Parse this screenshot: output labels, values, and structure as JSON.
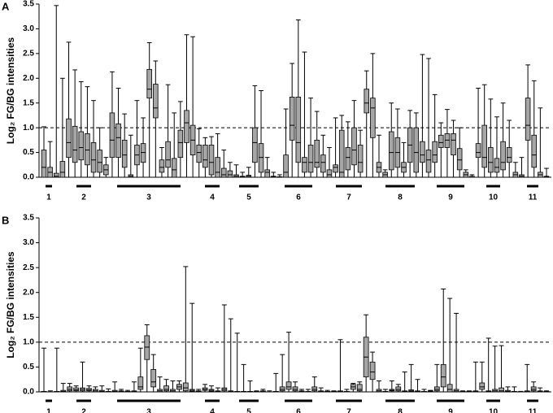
{
  "chart_data": [
    {
      "type": "box",
      "panel": "A",
      "y_label": "Log₂ FG/BG intensities",
      "ylim": [
        0,
        3.5
      ],
      "yticks": [
        {
          "value": 0,
          "label": "0.0"
        },
        0.5,
        {
          "value": 1,
          "label": "1.0"
        },
        1.5,
        {
          "value": 2,
          "label": "2.0"
        },
        2.5,
        {
          "value": 3,
          "label": "3.0"
        },
        3.5
      ],
      "reference_line": 1,
      "color": "#a6a6a6",
      "groups": [
        "1",
        "2",
        "3",
        "4",
        "5",
        "6",
        "7",
        "8",
        "9",
        "10",
        "11"
      ],
      "boxes": [
        [
          0,
          0,
          0.2,
          0.55,
          1.02
        ],
        [
          0,
          0,
          0.1,
          0.2,
          0.72
        ],
        [
          0,
          0,
          0.02,
          0.08,
          3.47
        ],
        [
          0,
          0,
          0.1,
          0.32,
          2.0
        ],
        [
          0,
          0.4,
          0.7,
          1.18,
          2.73
        ],
        [
          0,
          0.3,
          0.55,
          1.03,
          2.17
        ],
        [
          0,
          0.35,
          0.6,
          0.92,
          1.93
        ],
        [
          0,
          0.25,
          0.55,
          0.88,
          1.83
        ],
        [
          0,
          0.1,
          0.35,
          0.7,
          1.55
        ],
        [
          0,
          0.1,
          0.3,
          0.55,
          1.0
        ],
        [
          0,
          0.05,
          0.15,
          0.25,
          0.4
        ],
        [
          0,
          0.4,
          0.75,
          1.3,
          2.13
        ],
        [
          0,
          0.4,
          0.8,
          1.08,
          1.8
        ],
        [
          0,
          0.2,
          0.45,
          0.75,
          1.28
        ],
        [
          0,
          0,
          0.02,
          0.05,
          0.85
        ],
        [
          0,
          0.25,
          0.45,
          0.65,
          1.55
        ],
        [
          0,
          0.3,
          0.5,
          0.68,
          1.2
        ],
        [
          0,
          1.6,
          1.78,
          2.18,
          2.72
        ],
        [
          0,
          1.2,
          1.4,
          1.88,
          2.35
        ],
        [
          0,
          0.1,
          0.2,
          0.35,
          0.6
        ],
        [
          0,
          0.2,
          0.35,
          0.72,
          1.87
        ],
        [
          0,
          0,
          0.15,
          0.38,
          1.3
        ],
        [
          0,
          0.4,
          0.7,
          0.95,
          1.53
        ],
        [
          0,
          0.7,
          1.1,
          1.35,
          2.88
        ],
        [
          0,
          0.45,
          0.75,
          1.05,
          2.84
        ],
        [
          0,
          0.3,
          0.5,
          0.65,
          0.98
        ],
        [
          0,
          0.2,
          0.35,
          0.65,
          0.8
        ],
        [
          0,
          0.05,
          0.3,
          0.65,
          0.82
        ],
        [
          0,
          0,
          0.1,
          0.4,
          0.88
        ],
        [
          0,
          0,
          0.05,
          0.18,
          0.55
        ],
        [
          0,
          0,
          0.05,
          0.13,
          0.3
        ],
        [
          0,
          0,
          0.02,
          0.05,
          0.25
        ],
        [
          0,
          0,
          0.01,
          0.02,
          0.1
        ],
        [
          0,
          0,
          0.02,
          0.04,
          0.2
        ],
        [
          0,
          0.3,
          0.7,
          1.0,
          1.85
        ],
        [
          0,
          0.1,
          0.4,
          0.68,
          1.75
        ],
        [
          0,
          0,
          0.1,
          0.15,
          0.4
        ],
        [
          0,
          0,
          0.01,
          0.02,
          0.1
        ],
        [
          0,
          0,
          0,
          0.01,
          0.05
        ],
        [
          0,
          0,
          0.1,
          0.45,
          1.38
        ],
        [
          0,
          0.75,
          1.05,
          1.62,
          2.3
        ],
        [
          0,
          0.3,
          0.7,
          1.62,
          3.18
        ],
        [
          0,
          0.1,
          0.3,
          0.4,
          2.53
        ],
        [
          0,
          0.1,
          0.3,
          0.65,
          1.6
        ],
        [
          0,
          0.2,
          0.3,
          0.75,
          1.33
        ],
        [
          0,
          0.1,
          0.3,
          0.45,
          0.85
        ],
        [
          0,
          0,
          0.05,
          0.15,
          0.6
        ],
        [
          0,
          0.1,
          0.2,
          0.25,
          1.2
        ],
        [
          0,
          0,
          0.1,
          0.95,
          1.25
        ],
        [
          0,
          0.15,
          0.4,
          0.6,
          1.12
        ],
        [
          0,
          0.25,
          0.55,
          1.0,
          1.55
        ],
        [
          0,
          0.1,
          0.3,
          0.65,
          0.95
        ],
        [
          0,
          1.3,
          1.5,
          1.78,
          2.15
        ],
        [
          0,
          0.8,
          1.4,
          1.6,
          2.5
        ],
        [
          0,
          0.1,
          0.2,
          0.3,
          0.85
        ],
        [
          0,
          0,
          0.05,
          0.1,
          0.15
        ],
        [
          0,
          0.15,
          0.5,
          0.92,
          1.5
        ],
        [
          0,
          0.2,
          0.5,
          0.8,
          1.38
        ],
        [
          0,
          0.1,
          0.2,
          0.3,
          0.7
        ],
        [
          0,
          0.3,
          0.65,
          1.0,
          1.35
        ],
        [
          0,
          0.1,
          0.5,
          1.0,
          1.3
        ],
        [
          0,
          0.3,
          0.45,
          0.72,
          2.48
        ],
        [
          0,
          0.1,
          0.35,
          0.55,
          2.4
        ],
        [
          0,
          0.3,
          0.45,
          0.72,
          1.67
        ],
        [
          0,
          0.6,
          0.7,
          0.85,
          1.1
        ],
        [
          0,
          0.6,
          0.75,
          0.88,
          1.37
        ],
        [
          0,
          0.45,
          0.75,
          0.88,
          1.15
        ],
        [
          0,
          0.15,
          0.35,
          0.58,
          1.0
        ],
        [
          0,
          0,
          0.05,
          0.1,
          0.15
        ],
        [
          0,
          0,
          0,
          0.02,
          0.05
        ],
        [
          0,
          0.4,
          0.5,
          0.68,
          1.8
        ],
        [
          0,
          0.2,
          0.4,
          1.05,
          1.87
        ],
        [
          0,
          0.1,
          0.3,
          0.6,
          1.58
        ],
        [
          0,
          0.1,
          0.2,
          0.38,
          1.22
        ],
        [
          0,
          0.15,
          0.3,
          0.72,
          1.5
        ],
        [
          0,
          0.3,
          0.4,
          0.6,
          1.15
        ],
        [
          0,
          0,
          0.05,
          0.1,
          0.3
        ],
        [
          0,
          0,
          0.02,
          0.05,
          0.4
        ],
        [
          0,
          0.75,
          1.05,
          1.6,
          2.27
        ],
        [
          0,
          0.2,
          0.45,
          0.85,
          1.95
        ],
        [
          0,
          0,
          0.05,
          0.1,
          1.4
        ],
        [
          0,
          0,
          0.01,
          0.02,
          0.18
        ]
      ]
    },
    {
      "type": "box",
      "panel": "B",
      "y_label": "Log₂ FG/BG intensities",
      "ylim": [
        0,
        3.5
      ],
      "yticks": [
        {
          "value": 0,
          "label": "0.0"
        },
        0.5,
        {
          "value": 1,
          "label": "1.0"
        },
        1.5,
        {
          "value": 2,
          "label": "2.0"
        },
        2.5,
        {
          "value": 3,
          "label": "3.0"
        },
        3.5
      ],
      "reference_line": 1,
      "color": "#a6a6a6",
      "groups": [
        "1",
        "2",
        "3",
        "4",
        "5",
        "6",
        "7",
        "8",
        "9",
        "10",
        "11"
      ],
      "boxes": [
        [
          0,
          0,
          0,
          0.01,
          0.88
        ],
        [
          0,
          0,
          0,
          0,
          0.02
        ],
        [
          0,
          0,
          0,
          0.01,
          0.88
        ],
        [
          0,
          0,
          0.01,
          0.03,
          0.17
        ],
        [
          0,
          0.02,
          0.05,
          0.1,
          0.17
        ],
        [
          0,
          0.02,
          0.04,
          0.08,
          0.12
        ],
        [
          0,
          0.02,
          0.05,
          0.08,
          0.6
        ],
        [
          0,
          0.02,
          0.04,
          0.07,
          0.12
        ],
        [
          0,
          0,
          0.02,
          0.05,
          0.1
        ],
        [
          0,
          0,
          0.01,
          0.03,
          0.12
        ],
        [
          0,
          0,
          0,
          0.01,
          0.06
        ],
        [
          0,
          0,
          0.01,
          0.03,
          0.2
        ],
        [
          0,
          0,
          0.01,
          0.02,
          0.05
        ],
        [
          0,
          0,
          0,
          0.01,
          0.03
        ],
        [
          0,
          0,
          0.01,
          0.02,
          0.2
        ],
        [
          0,
          0.05,
          0.1,
          0.3,
          0.88
        ],
        [
          0,
          0.65,
          0.9,
          1.13,
          1.35
        ],
        [
          0,
          0.1,
          0.2,
          0.45,
          0.75
        ],
        [
          0,
          0,
          0.02,
          0.05,
          0.3
        ],
        [
          0,
          0.02,
          0.05,
          0.12,
          0.25
        ],
        [
          0,
          0,
          0.02,
          0.05,
          0.22
        ],
        [
          0,
          0.05,
          0.1,
          0.15,
          0.22
        ],
        [
          0,
          0.02,
          0.08,
          0.18,
          2.52
        ],
        [
          0,
          0.01,
          0.03,
          0.05,
          1.78
        ],
        [
          0,
          0,
          0.01,
          0.02,
          0.05
        ],
        [
          0,
          0.03,
          0.05,
          0.08,
          0.15
        ],
        [
          0,
          0.01,
          0.03,
          0.05,
          0.12
        ],
        [
          0,
          0,
          0.01,
          0.02,
          0.08
        ],
        [
          0,
          0.02,
          0.05,
          0.08,
          1.75
        ],
        [
          0,
          0,
          0.01,
          0.02,
          1.47
        ],
        [
          0,
          0,
          0,
          0.01,
          1.18
        ],
        [
          0,
          0,
          0,
          0.01,
          0.55
        ],
        [
          0,
          0,
          0,
          0.01,
          0.22
        ],
        [
          0,
          0,
          0,
          0.01,
          0.02
        ],
        [
          0,
          0,
          0.01,
          0.02,
          0.05
        ],
        [
          0,
          0,
          0,
          0,
          0.02
        ],
        [
          0,
          0,
          0,
          0.01,
          0.37
        ],
        [
          0,
          0.02,
          0.05,
          0.1,
          0.75
        ],
        [
          0,
          0.05,
          0.1,
          0.2,
          1.2
        ],
        [
          0,
          0.02,
          0.05,
          0.1,
          0.2
        ],
        [
          0,
          0,
          0.01,
          0.02,
          0.05
        ],
        [
          0,
          0,
          0,
          0.01,
          0.05
        ],
        [
          0,
          0.02,
          0.05,
          0.1,
          0.3
        ],
        [
          0,
          0,
          0.01,
          0.02,
          0.08
        ],
        [
          0,
          0,
          0,
          0.01,
          0.03
        ],
        [
          0,
          0,
          0,
          0.01,
          0.02
        ],
        [
          0,
          0,
          0.01,
          0.02,
          1.05
        ],
        [
          0,
          0,
          0,
          0.01,
          0.05
        ],
        [
          0,
          0.05,
          0.1,
          0.15,
          0.17
        ],
        [
          0,
          0.02,
          0.05,
          0.15,
          0.2
        ],
        [
          0,
          0.3,
          0.7,
          1.1,
          1.55
        ],
        [
          0,
          0.25,
          0.4,
          0.6,
          0.8
        ],
        [
          0,
          0,
          0.02,
          0.05,
          0.22
        ],
        [
          0,
          0,
          0,
          0.01,
          0.05
        ],
        [
          0,
          0.02,
          0.03,
          0.05,
          0.22
        ],
        [
          0,
          0.02,
          0.05,
          0.1,
          0.15
        ],
        [
          0,
          0,
          0.01,
          0.02,
          0.4
        ],
        [
          0,
          0.01,
          0.02,
          0.04,
          0.55
        ],
        [
          0,
          0,
          0.01,
          0.02,
          0.25
        ],
        [
          0,
          0,
          0,
          0.01,
          0.05
        ],
        [
          0,
          0,
          0.01,
          0.02,
          0.03
        ],
        [
          0,
          0.02,
          0.05,
          0.1,
          0.55
        ],
        [
          0,
          0.1,
          0.3,
          0.55,
          2.07
        ],
        [
          0,
          0,
          0.05,
          0.15,
          1.88
        ],
        [
          0,
          0,
          0.02,
          0.05,
          1.58
        ],
        [
          0,
          0,
          0,
          0.01,
          0.02
        ],
        [
          0,
          0,
          0,
          0.01,
          0.02
        ],
        [
          0,
          0,
          0.01,
          0.02,
          0.6
        ],
        [
          0,
          0.05,
          0.1,
          0.18,
          0.6
        ],
        [
          0,
          0,
          0.01,
          0.02,
          1.08
        ],
        [
          0,
          0,
          0.02,
          0.05,
          0.92
        ],
        [
          0,
          0,
          0.02,
          0.08,
          0.93
        ],
        [
          0,
          0,
          0.01,
          0.03,
          0.1
        ],
        [
          0,
          0,
          0,
          0.01,
          0.1
        ],
        [
          0,
          0,
          0,
          0,
          0.01
        ],
        [
          0,
          0,
          0.01,
          0.02,
          0.55
        ],
        [
          0,
          0.02,
          0.05,
          0.1,
          0.2
        ],
        [
          0,
          0,
          0.01,
          0.02,
          0.08
        ],
        [
          0,
          0,
          0,
          0.01,
          0.02
        ]
      ]
    }
  ]
}
